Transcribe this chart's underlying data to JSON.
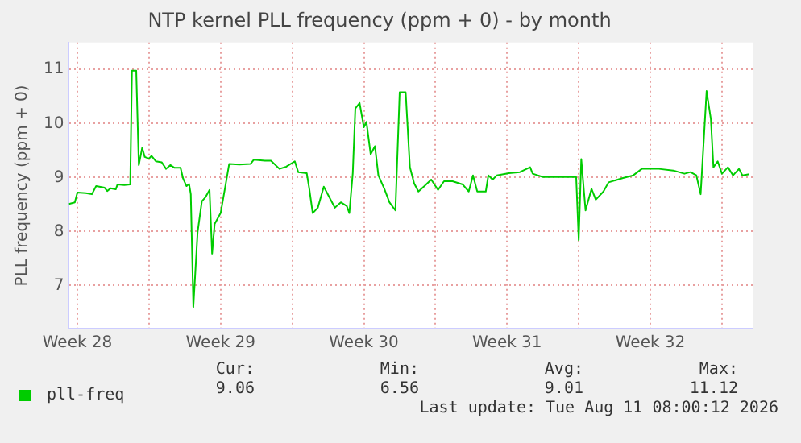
{
  "chart_data": {
    "type": "line",
    "title": "NTP kernel PLL frequency (ppm + 0) - by month",
    "ylabel": "PLL frequency (ppm + 0)",
    "x": [
      "2026-07-09T02:00",
      "2026-07-09T09:00",
      "2026-07-09T12:00",
      "2026-07-09T22:00",
      "2026-07-10T05:00",
      "2026-07-10T10:00",
      "2026-07-10T20:00",
      "2026-07-10T23:00",
      "2026-07-11T03:00",
      "2026-07-11T09:00",
      "2026-07-11T11:00",
      "2026-07-11T19:00",
      "2026-07-12T02:00",
      "2026-07-12T04:00",
      "2026-07-12T09:00",
      "2026-07-12T12:00",
      "2026-07-12T16:00",
      "2026-07-12T19:00",
      "2026-07-13T00:00",
      "2026-07-13T03:00",
      "2026-07-13T08:00",
      "2026-07-13T15:00",
      "2026-07-13T20:00",
      "2026-07-14T01:00",
      "2026-07-14T06:00",
      "2026-07-14T13:00",
      "2026-07-14T16:00",
      "2026-07-14T20:00",
      "2026-07-14T23:00",
      "2026-07-15T01:00",
      "2026-07-15T04:00",
      "2026-07-15T09:00",
      "2026-07-15T14:00",
      "2026-07-15T18:00",
      "2026-07-15T23:00",
      "2026-07-16T02:00",
      "2026-07-16T05:00",
      "2026-07-16T12:00",
      "2026-07-16T17:00",
      "2026-07-16T22:00",
      "2026-07-17T10:00",
      "2026-07-17T23:00",
      "2026-07-18T03:00",
      "2026-07-18T16:00",
      "2026-07-18T23:00",
      "2026-07-19T09:00",
      "2026-07-19T17:00",
      "2026-07-20T03:00",
      "2026-07-20T07:00",
      "2026-07-20T17:00",
      "2026-07-20T20:00",
      "2026-07-21T00:00",
      "2026-07-21T06:00",
      "2026-07-21T13:00",
      "2026-07-22T02:00",
      "2026-07-22T09:00",
      "2026-07-22T16:00",
      "2026-07-22T19:00",
      "2026-07-22T23:00",
      "2026-07-23T02:00",
      "2026-07-23T07:00",
      "2026-07-23T12:00",
      "2026-07-23T15:00",
      "2026-07-23T20:00",
      "2026-07-24T01:00",
      "2026-07-24T05:00",
      "2026-07-24T12:00",
      "2026-07-24T18:00",
      "2026-07-25T01:00",
      "2026-07-25T06:00",
      "2026-07-25T13:00",
      "2026-07-25T18:00",
      "2026-07-25T23:00",
      "2026-07-26T04:00",
      "2026-07-26T11:00",
      "2026-07-26T19:00",
      "2026-07-27T03:00",
      "2026-07-27T10:00",
      "2026-07-27T20:00",
      "2026-07-28T08:00",
      "2026-07-28T15:00",
      "2026-07-28T20:00",
      "2026-07-29T01:00",
      "2026-07-29T11:00",
      "2026-07-29T14:00",
      "2026-07-29T19:00",
      "2026-07-30T00:00",
      "2026-07-30T14:00",
      "2026-07-31T03:00",
      "2026-07-31T15:00",
      "2026-07-31T18:00",
      "2026-08-01T06:00",
      "2026-08-02T02:00",
      "2026-08-02T21:00",
      "2026-08-03T00:00",
      "2026-08-03T03:00",
      "2026-08-03T08:00",
      "2026-08-03T15:00",
      "2026-08-03T20:00",
      "2026-08-04T05:00",
      "2026-08-04T11:00",
      "2026-08-05T04:00",
      "2026-08-05T16:00",
      "2026-08-06T02:00",
      "2026-08-06T22:00",
      "2026-08-07T15:00",
      "2026-08-08T04:00",
      "2026-08-08T11:00",
      "2026-08-08T18:00",
      "2026-08-08T23:00",
      "2026-08-09T06:00",
      "2026-08-09T11:00",
      "2026-08-09T14:00",
      "2026-08-09T19:00",
      "2026-08-10T00:00",
      "2026-08-10T07:00",
      "2026-08-10T13:00",
      "2026-08-10T20:00",
      "2026-08-11T00:00",
      "2026-08-11T08:00"
    ],
    "series": [
      {
        "name": "pll-freq",
        "color": "#00cc00",
        "values": [
          8.51,
          8.54,
          8.72,
          8.71,
          8.69,
          8.84,
          8.81,
          8.75,
          8.8,
          8.78,
          8.87,
          8.86,
          8.87,
          10.98,
          10.98,
          9.23,
          9.55,
          9.38,
          9.35,
          9.4,
          9.3,
          9.28,
          9.16,
          9.23,
          9.18,
          9.18,
          8.98,
          8.84,
          8.88,
          8.69,
          6.6,
          7.99,
          8.56,
          8.63,
          8.77,
          7.59,
          8.14,
          8.34,
          8.79,
          9.25,
          9.24,
          9.25,
          9.33,
          9.31,
          9.31,
          9.16,
          9.2,
          9.3,
          9.1,
          9.08,
          8.79,
          8.34,
          8.44,
          8.83,
          8.44,
          8.54,
          8.47,
          8.34,
          9.08,
          10.28,
          10.38,
          9.93,
          10.03,
          9.43,
          9.58,
          9.04,
          8.79,
          8.54,
          8.39,
          10.58,
          10.58,
          9.19,
          8.89,
          8.74,
          8.84,
          8.96,
          8.77,
          8.93,
          8.93,
          8.87,
          8.74,
          9.04,
          8.74,
          8.74,
          9.04,
          8.96,
          9.04,
          9.08,
          9.1,
          9.19,
          9.07,
          9.01,
          9.01,
          9.01,
          7.84,
          9.34,
          8.39,
          8.79,
          8.59,
          8.74,
          8.91,
          8.99,
          9.04,
          9.16,
          9.16,
          9.13,
          9.07,
          9.1,
          9.04,
          8.69,
          10.6,
          10.08,
          9.19,
          9.3,
          9.07,
          9.19,
          9.04,
          9.16,
          9.04,
          9.06
        ]
      }
    ],
    "xlim": [
      "2026-07-09T02:00",
      "2026-08-11T12:00"
    ],
    "xticks": [
      {
        "value": "2026-07-09T12:00",
        "label": "Week 28"
      },
      {
        "value": "2026-07-13T00:00",
        "label": null
      },
      {
        "value": "2026-07-16T12:00",
        "label": "Week 29"
      },
      {
        "value": "2026-07-20T00:00",
        "label": null
      },
      {
        "value": "2026-07-23T12:00",
        "label": "Week 30"
      },
      {
        "value": "2026-07-27T00:00",
        "label": null
      },
      {
        "value": "2026-07-30T12:00",
        "label": "Week 31"
      },
      {
        "value": "2026-08-03T00:00",
        "label": null
      },
      {
        "value": "2026-08-06T12:00",
        "label": "Week 32"
      },
      {
        "value": "2026-08-10T00:00",
        "label": null
      }
    ],
    "ylim": [
      6.2,
      11.5
    ],
    "yticks": [
      7,
      8,
      9,
      10,
      11
    ],
    "grid": true,
    "legend": "bottom left",
    "marker": "none",
    "line_style": "solid",
    "annotations": [
      "Cur:",
      "Min:",
      "Avg:",
      "Max:",
      "9.06",
      "6.56",
      "9.01",
      "11.12",
      "Last update: Tue Aug 11 08:00:12 2026"
    ]
  }
}
